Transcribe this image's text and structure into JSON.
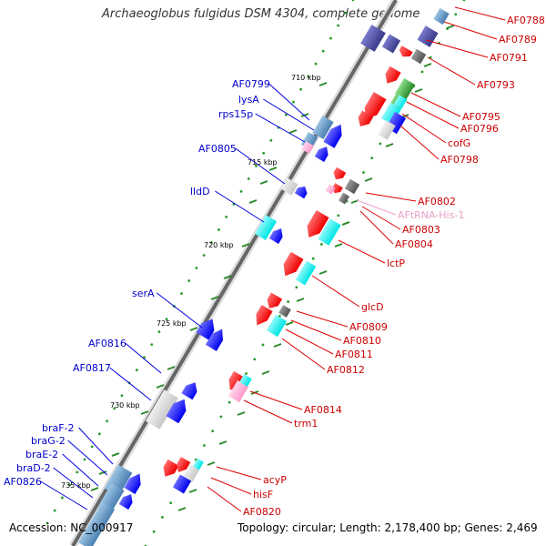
{
  "title": "Archaeoglobus fulgidus DSM 4304, complete genome",
  "footer": {
    "accession": "Accession: NC_000917",
    "summary": "Topology: circular; Length: 2,178,400 bp; Genes: 2,469"
  },
  "colors": {
    "forward_blue": "#0000ee",
    "reverse_red": "#ee0000",
    "cyan": "#00e5e5",
    "gray": "#c8c8c8",
    "dark_gray": "#555555",
    "steel_blue": "#4a7fb0",
    "navy": "#3a3a8a",
    "green": "#2a8a2a",
    "pink": "#ff99cc",
    "label_blue": "#0000cc",
    "label_red": "#cc0000",
    "label_pink": "#e8a0c8"
  },
  "kbp_markers": [
    "710 kbp",
    "715 kbp",
    "720 kbp",
    "725 kbp",
    "730 kbp",
    "735 kbp"
  ],
  "left_labels": [
    "AF0799",
    "lysA",
    "rps15p",
    "AF0805",
    "lldD",
    "serA",
    "AF0816",
    "AF0817",
    "braF-2",
    "braG-2",
    "braE-2",
    "braD-2",
    "AF0826"
  ],
  "right_labels": [
    "AF0788",
    "AF0789",
    "AF0791",
    "AF0793",
    "AF0795",
    "AF0796",
    "cofG",
    "AF0798",
    "AF0802",
    "AFtRNA-His-1",
    "AF0803",
    "AF0804",
    "lctP",
    "glcD",
    "AF0809",
    "AF0810",
    "AF0811",
    "AF0812",
    "AF0814",
    "trm1",
    "acyP",
    "hisF",
    "AF0820"
  ]
}
